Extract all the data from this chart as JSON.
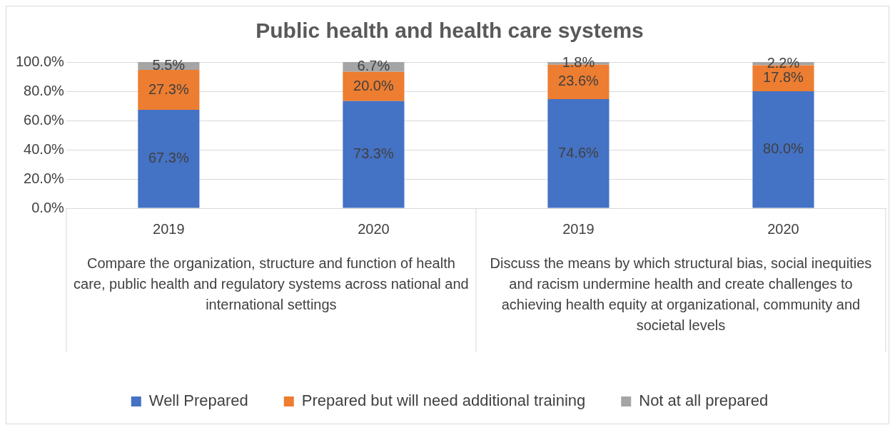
{
  "chart_data": {
    "type": "bar",
    "title": "Public health and health care systems",
    "categories": [
      "2019",
      "2020",
      "2019",
      "2020"
    ],
    "stacked": true,
    "series": [
      {
        "name": "Well Prepared",
        "color": "#4472c4",
        "values": [
          67.3,
          73.3,
          74.6,
          80.0
        ],
        "value_labels": [
          "67.3%",
          "73.3%",
          "74.6%",
          "80.0%"
        ]
      },
      {
        "name": "Prepared but will need additional training",
        "color": "#ed7d31",
        "values": [
          27.3,
          20.0,
          23.6,
          17.8
        ],
        "value_labels": [
          "27.3%",
          "20.0%",
          "23.6%",
          "17.8%"
        ]
      },
      {
        "name": "Not at all prepared",
        "color": "#a5a5a5",
        "values": [
          5.5,
          6.7,
          1.8,
          2.2
        ],
        "value_labels": [
          "5.5%",
          "6.7%",
          "1.8%",
          "2.2%"
        ]
      }
    ],
    "ylim": [
      0,
      100
    ],
    "yticks": [
      {
        "value": 0,
        "label": "0.0%"
      },
      {
        "value": 20,
        "label": "20.0%"
      },
      {
        "value": 40,
        "label": "40.0%"
      },
      {
        "value": 60,
        "label": "60.0%"
      },
      {
        "value": 80,
        "label": "80.0%"
      },
      {
        "value": 100,
        "label": "100.0%"
      }
    ],
    "annotations": [
      "Compare the organization, structure and function of health care, public health and regulatory systems across national and international settings",
      "Discuss the means by which structural bias, social inequities and racism undermine health and create challenges to achieving health equity at organizational, community and societal levels"
    ],
    "grid": "y",
    "legend": "bottom"
  }
}
